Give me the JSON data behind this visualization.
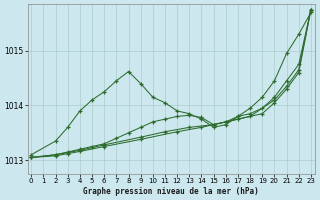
{
  "title": "Graphe pression niveau de la mer (hPa)",
  "background_color": "#cce8ee",
  "grid_color": "#aacccc",
  "line_color": "#2d6b2d",
  "xlim": [
    -0.3,
    23.3
  ],
  "ylim": [
    1012.75,
    1015.85
  ],
  "yticks": [
    1013,
    1014,
    1015
  ],
  "xticks": [
    0,
    1,
    2,
    3,
    4,
    5,
    6,
    7,
    8,
    9,
    10,
    11,
    12,
    13,
    14,
    15,
    16,
    17,
    18,
    19,
    20,
    21,
    22,
    23
  ],
  "series": [
    {
      "x": [
        0,
        2,
        3,
        4,
        5,
        6,
        7,
        8,
        9,
        10,
        11,
        12,
        13,
        14,
        15,
        16,
        17,
        18,
        19,
        20,
        21,
        22,
        23
      ],
      "y": [
        1013.1,
        1013.35,
        1013.6,
        1013.9,
        1014.1,
        1014.25,
        1014.45,
        1014.62,
        1014.4,
        1014.15,
        1014.05,
        1013.9,
        1013.85,
        1013.75,
        1013.6,
        1013.65,
        1013.8,
        1013.95,
        1014.15,
        1014.45,
        1014.95,
        1015.3,
        1015.7
      ]
    },
    {
      "x": [
        0,
        2,
        3,
        4,
        5,
        6,
        7,
        8,
        9,
        10,
        11,
        12,
        13,
        14,
        15,
        16,
        17,
        18,
        19,
        20,
        21,
        22,
        23
      ],
      "y": [
        1013.05,
        1013.1,
        1013.15,
        1013.2,
        1013.25,
        1013.3,
        1013.4,
        1013.5,
        1013.6,
        1013.7,
        1013.75,
        1013.8,
        1013.82,
        1013.78,
        1013.65,
        1013.7,
        1013.8,
        1013.85,
        1013.95,
        1014.15,
        1014.45,
        1014.75,
        1015.75
      ]
    },
    {
      "x": [
        0,
        2,
        3,
        4,
        6,
        9,
        12,
        14,
        16,
        18,
        20,
        21,
        22,
        23
      ],
      "y": [
        1013.05,
        1013.08,
        1013.12,
        1013.16,
        1013.25,
        1013.38,
        1013.52,
        1013.6,
        1013.7,
        1013.8,
        1014.1,
        1014.35,
        1014.65,
        1015.75
      ]
    },
    {
      "x": [
        0,
        2,
        4,
        6,
        9,
        11,
        13,
        15,
        17,
        19,
        20,
        21,
        22,
        23
      ],
      "y": [
        1013.05,
        1013.1,
        1013.18,
        1013.28,
        1013.42,
        1013.52,
        1013.6,
        1013.65,
        1013.75,
        1013.85,
        1014.05,
        1014.3,
        1014.6,
        1015.75
      ]
    }
  ]
}
